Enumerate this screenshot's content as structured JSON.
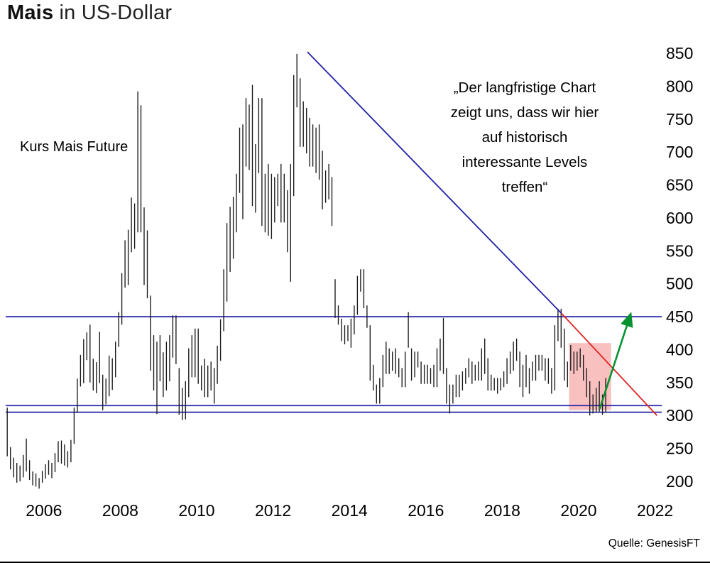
{
  "page": {
    "title_bold": "Mais",
    "title_rest": " in US-Dollar",
    "source": "Quelle: GenesisFT"
  },
  "annotations": {
    "series_label": "Kurs Mais Future",
    "quote_lines": [
      "„Der langfristige Chart",
      "zeigt uns, dass wir hier",
      "auf historisch",
      "interessante Levels",
      "treffen“"
    ]
  },
  "chart_data": {
    "type": "bar",
    "subtype": "high-low-price-bars",
    "title": "Mais in US-Dollar",
    "series_label": "Kurs Mais Future",
    "xlabel": "",
    "ylabel": "",
    "y_axis_side": "right",
    "grid": false,
    "x_range": [
      2005.0,
      2022.15
    ],
    "y_range": [
      180,
      870
    ],
    "y_ticks": [
      200,
      250,
      300,
      350,
      400,
      450,
      500,
      550,
      600,
      650,
      700,
      750,
      800,
      850
    ],
    "x_ticks": [
      2006,
      2008,
      2010,
      2012,
      2014,
      2016,
      2018,
      2020,
      2022
    ],
    "bars_start": 2005.0,
    "bars_interval": "monthly",
    "bars_format": "[high, low] in US-cents per bushel",
    "bars": [
      [
        312,
        238
      ],
      [
        252,
        218
      ],
      [
        236,
        206
      ],
      [
        228,
        198
      ],
      [
        224,
        200
      ],
      [
        240,
        206
      ],
      [
        265,
        215
      ],
      [
        232,
        202
      ],
      [
        215,
        194
      ],
      [
        212,
        192
      ],
      [
        205,
        189
      ],
      [
        216,
        198
      ],
      [
        226,
        204
      ],
      [
        232,
        210
      ],
      [
        228,
        205
      ],
      [
        243,
        214
      ],
      [
        261,
        229
      ],
      [
        262,
        227
      ],
      [
        256,
        224
      ],
      [
        246,
        221
      ],
      [
        263,
        229
      ],
      [
        312,
        257
      ],
      [
        356,
        304
      ],
      [
        392,
        344
      ],
      [
        416,
        349
      ],
      [
        426,
        384
      ],
      [
        438,
        350
      ],
      [
        386,
        338
      ],
      [
        381,
        334
      ],
      [
        427,
        349
      ],
      [
        362,
        308
      ],
      [
        356,
        317
      ],
      [
        391,
        329
      ],
      [
        387,
        339
      ],
      [
        412,
        358
      ],
      [
        457,
        404
      ],
      [
        516,
        438
      ],
      [
        566,
        494
      ],
      [
        582,
        498
      ],
      [
        631,
        548
      ],
      [
        622,
        553
      ],
      [
        792,
        578
      ],
      [
        771,
        578
      ],
      [
        616,
        498
      ],
      [
        581,
        478
      ],
      [
        482,
        368
      ],
      [
        422,
        338
      ],
      [
        412,
        302
      ],
      [
        422,
        352
      ],
      [
        396,
        328
      ],
      [
        412,
        338
      ],
      [
        422,
        352
      ],
      [
        452,
        388
      ],
      [
        452,
        378
      ],
      [
        372,
        301
      ],
      [
        342,
        293
      ],
      [
        352,
        294
      ],
      [
        402,
        328
      ],
      [
        422,
        358
      ],
      [
        432,
        358
      ],
      [
        432,
        348
      ],
      [
        376,
        338
      ],
      [
        386,
        328
      ],
      [
        376,
        328
      ],
      [
        382,
        338
      ],
      [
        372,
        318
      ],
      [
        406,
        348
      ],
      [
        446,
        383
      ],
      [
        522,
        428
      ],
      [
        592,
        473
      ],
      [
        617,
        518
      ],
      [
        632,
        538
      ],
      [
        667,
        578
      ],
      [
        737,
        638
      ],
      [
        742,
        598
      ],
      [
        782,
        678
      ],
      [
        772,
        673
      ],
      [
        802,
        618
      ],
      [
        712,
        608
      ],
      [
        782,
        668
      ],
      [
        782,
        588
      ],
      [
        667,
        578
      ],
      [
        682,
        573
      ],
      [
        667,
        568
      ],
      [
        662,
        593
      ],
      [
        667,
        618
      ],
      [
        682,
        593
      ],
      [
        667,
        593
      ],
      [
        642,
        548
      ],
      [
        682,
        503
      ],
      [
        817,
        633
      ],
      [
        849,
        768
      ],
      [
        812,
        708
      ],
      [
        777,
        708
      ],
      [
        767,
        698
      ],
      [
        752,
        678
      ],
      [
        742,
        678
      ],
      [
        737,
        668
      ],
      [
        742,
        658
      ],
      [
        702,
        613
      ],
      [
        672,
        623
      ],
      [
        682,
        628
      ],
      [
        662,
        588
      ],
      [
        507,
        448
      ],
      [
        467,
        438
      ],
      [
        447,
        413
      ],
      [
        437,
        408
      ],
      [
        437,
        413
      ],
      [
        447,
        403
      ],
      [
        467,
        423
      ],
      [
        512,
        453
      ],
      [
        522,
        488
      ],
      [
        522,
        463
      ],
      [
        467,
        433
      ],
      [
        437,
        353
      ],
      [
        377,
        338
      ],
      [
        347,
        318
      ],
      [
        357,
        318
      ],
      [
        392,
        343
      ],
      [
        412,
        363
      ],
      [
        402,
        363
      ],
      [
        397,
        368
      ],
      [
        402,
        363
      ],
      [
        387,
        358
      ],
      [
        372,
        343
      ],
      [
        397,
        343
      ],
      [
        457,
        403
      ],
      [
        402,
        353
      ],
      [
        397,
        358
      ],
      [
        397,
        373
      ],
      [
        382,
        348
      ],
      [
        377,
        348
      ],
      [
        377,
        348
      ],
      [
        372,
        348
      ],
      [
        377,
        343
      ],
      [
        402,
        343
      ],
      [
        417,
        368
      ],
      [
        448,
        363
      ],
      [
        372,
        318
      ],
      [
        347,
        303
      ],
      [
        347,
        318
      ],
      [
        362,
        328
      ],
      [
        362,
        328
      ],
      [
        367,
        338
      ],
      [
        372,
        348
      ],
      [
        387,
        358
      ],
      [
        382,
        348
      ],
      [
        377,
        353
      ],
      [
        382,
        353
      ],
      [
        402,
        353
      ],
      [
        417,
        363
      ],
      [
        387,
        338
      ],
      [
        362,
        338
      ],
      [
        357,
        338
      ],
      [
        357,
        333
      ],
      [
        357,
        338
      ],
      [
        367,
        343
      ],
      [
        387,
        348
      ],
      [
        397,
        363
      ],
      [
        412,
        368
      ],
      [
        417,
        383
      ],
      [
        397,
        343
      ],
      [
        377,
        328
      ],
      [
        392,
        343
      ],
      [
        372,
        333
      ],
      [
        382,
        353
      ],
      [
        392,
        353
      ],
      [
        392,
        368
      ],
      [
        392,
        368
      ],
      [
        387,
        353
      ],
      [
        387,
        348
      ],
      [
        372,
        333
      ],
      [
        437,
        338
      ],
      [
        462,
        413
      ],
      [
        462,
        403
      ],
      [
        432,
        353
      ],
      [
        382,
        343
      ],
      [
        407,
        368
      ],
      [
        397,
        363
      ],
      [
        397,
        368
      ],
      [
        402,
        373
      ],
      [
        392,
        353
      ],
      [
        372,
        328
      ],
      [
        352,
        300
      ],
      [
        332,
        303
      ],
      [
        342,
        304
      ],
      [
        352,
        306
      ],
      [
        332,
        301
      ],
      [
        357,
        304
      ]
    ],
    "support_levels": [
      450,
      315,
      305
    ],
    "trendline_blue": {
      "x1": 2012.9,
      "y1": 852,
      "x2": 2019.55,
      "y2": 455
    },
    "trendline_red": {
      "x1": 2019.55,
      "y1": 455,
      "x2": 2022.05,
      "y2": 300
    },
    "green_arrow": {
      "x1": 2020.55,
      "y1": 310,
      "x2": 2021.35,
      "y2": 452
    },
    "highlight_box": {
      "x1": 2019.75,
      "x2": 2020.85,
      "y1": 308,
      "y2": 410
    },
    "colors": {
      "bars": "#181818",
      "support_line": "#2121a8",
      "trend_blue": "#2121a8",
      "trend_red": "#e02424",
      "arrow_green": "#079230",
      "highlight": "#f59a9a"
    },
    "source": "Quelle: GenesisFT"
  }
}
